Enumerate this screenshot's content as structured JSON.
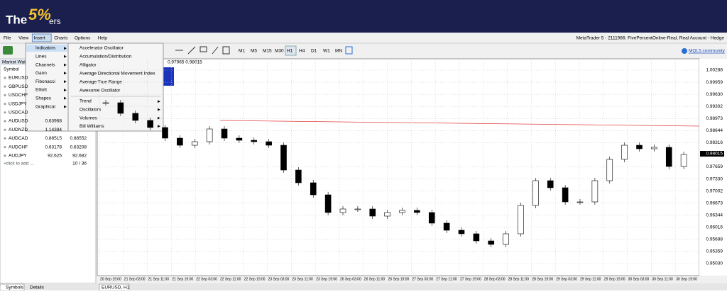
{
  "logo": {
    "the": "The",
    "five": "5%",
    "ers": "ers"
  },
  "menu": [
    "File",
    "View",
    "Insert",
    "Charts",
    "Options",
    "Help"
  ],
  "window_title": "MetaTrader 5 - 2111986: FivePercentOnline-Real, Real Account - Hedge",
  "timeframes": [
    "M1",
    "M5",
    "M15",
    "M30",
    "H1",
    "H4",
    "D1",
    "W1",
    "MN"
  ],
  "community": "MQL5.community",
  "market_watch": {
    "title": "Market Watch",
    "column": "Symbol",
    "rows": [
      [
        "EURUSD",
        "",
        ""
      ],
      [
        "GBPUSD",
        "",
        ""
      ],
      [
        "USDCHF",
        "",
        ""
      ],
      [
        "USDJPY",
        "",
        ""
      ],
      [
        "USDCAD",
        "",
        ""
      ],
      [
        "AUDUSD",
        "0.63968",
        ""
      ],
      [
        "AUDNZD",
        "1.14384",
        ""
      ],
      [
        "AUDCAD",
        "0.88515",
        "0.88552"
      ],
      [
        "AUDCHF",
        "0.63178",
        "0.63208"
      ],
      [
        "AUDJPY",
        "92.625",
        "92.682"
      ]
    ],
    "add": "click to add ...",
    "count": "10 / 36"
  },
  "insert_menu": [
    "Indicators",
    "Lines",
    "Channels",
    "Gann",
    "Fibonacci",
    "Elliott",
    "Shapes",
    "Graphical"
  ],
  "indicators_menu": [
    "Accelerator Oscillator",
    "Accumulation/Distribution",
    "Alligator",
    "Average Directional Movement Index",
    "Average True Range",
    "Awesome Oscillator"
  ],
  "indicator_groups": [
    "Trend",
    "Oscillators",
    "Volumes",
    "Bill Williams"
  ],
  "chart": {
    "quote": "0.97965 0.98015",
    "price_axis": [
      {
        "value": 1.00288,
        "label": "1.00288"
      },
      {
        "value": 0.99959,
        "label": "0.99959"
      },
      {
        "value": 0.9963,
        "label": "0.99630"
      },
      {
        "value": 0.99302,
        "label": "0.99302"
      },
      {
        "value": 0.98973,
        "label": "0.98973"
      },
      {
        "value": 0.98644,
        "label": "0.98644"
      },
      {
        "value": 0.98316,
        "label": "0.98316"
      },
      {
        "value": 0.97659,
        "label": "0.97659"
      },
      {
        "value": 0.9733,
        "label": "0.97330"
      },
      {
        "value": 0.97002,
        "label": "0.97002"
      },
      {
        "value": 0.96673,
        "label": "0.96673"
      },
      {
        "value": 0.96344,
        "label": "0.96344"
      },
      {
        "value": 0.96016,
        "label": "0.96016"
      },
      {
        "value": 0.95688,
        "label": "0.95688"
      },
      {
        "value": 0.95359,
        "label": "0.95359"
      },
      {
        "value": 0.9503,
        "label": "0.95030"
      }
    ],
    "current_price": {
      "value": 0.98015,
      "label": "0.98015"
    },
    "dates": [
      "20 Sep 19:00",
      "21 Sep 03:00",
      "21 Sep 11:00",
      "21 Sep 19:00",
      "22 Sep 03:00",
      "22 Sep 11:00",
      "22 Sep 19:00",
      "23 Sep 03:00",
      "23 Sep 11:00",
      "23 Sep 19:00",
      "26 Sep 03:00",
      "26 Sep 11:00",
      "26 Sep 19:00",
      "27 Sep 03:00",
      "27 Sep 11:00",
      "27 Sep 19:00",
      "28 Sep 03:00",
      "28 Sep 11:00",
      "28 Sep 19:00",
      "29 Sep 03:00",
      "29 Sep 11:00",
      "29 Sep 19:00",
      "30 Sep 03:00",
      "30 Sep 11:00",
      "30 Sep 19:00"
    ],
    "closes": [
      0.99402,
      0.99113,
      0.98921,
      0.98728,
      0.98439,
      0.98246,
      0.98343,
      0.98689,
      0.98439,
      0.98381,
      0.98343,
      0.98246,
      0.97572,
      0.97226,
      0.96898,
      0.96417,
      0.96513,
      0.96513,
      0.9632,
      0.96417,
      0.96475,
      0.96417,
      0.96128,
      0.95935,
      0.95839,
      0.95646,
      0.9555,
      0.95839,
      0.96609,
      0.97283,
      0.97091,
      0.96706,
      0.96706,
      0.97283,
      0.97861,
      0.98246,
      0.9815,
      0.98189,
      0.97669,
      0.97996
    ]
  },
  "tabs": [
    "Symbols",
    "Details"
  ],
  "chart_tab": "EURUSD, H1"
}
